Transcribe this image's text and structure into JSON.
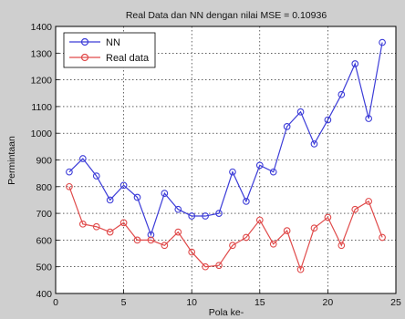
{
  "chart_data": {
    "type": "line",
    "title": "Real Data dan NN dengan nilai MSE = 0.10936",
    "xlabel": "Pola ke-",
    "ylabel": "Permintaan",
    "xlim": [
      0,
      25
    ],
    "ylim": [
      400,
      1400
    ],
    "xticks": [
      0,
      5,
      10,
      15,
      20,
      25
    ],
    "yticks": [
      400,
      500,
      600,
      700,
      800,
      900,
      1000,
      1100,
      1200,
      1300,
      1400
    ],
    "grid": true,
    "legend_position": "top-left",
    "x": [
      1,
      2,
      3,
      4,
      5,
      6,
      7,
      8,
      9,
      10,
      11,
      12,
      13,
      14,
      15,
      16,
      17,
      18,
      19,
      20,
      21,
      22,
      23,
      24
    ],
    "series": [
      {
        "name": "NN",
        "color": "#3c3cd8",
        "marker": "circle",
        "values": [
          855,
          905,
          840,
          750,
          805,
          760,
          620,
          775,
          715,
          690,
          690,
          700,
          855,
          745,
          880,
          855,
          1025,
          1080,
          960,
          1050,
          1145,
          1260,
          1055,
          1340
        ]
      },
      {
        "name": "Real data",
        "color": "#e04a4a",
        "marker": "circle",
        "values": [
          800,
          660,
          650,
          630,
          665,
          600,
          600,
          580,
          630,
          555,
          500,
          505,
          580,
          610,
          675,
          585,
          635,
          490,
          645,
          685,
          580,
          715,
          745,
          610
        ]
      }
    ]
  }
}
